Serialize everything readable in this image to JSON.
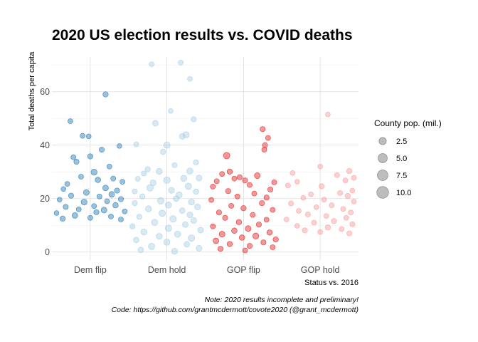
{
  "chart_data": {
    "type": "scatter",
    "title": "2020 US election results vs. COVID deaths",
    "xlabel": "Status vs. 2016",
    "ylabel": "Total deaths per capita",
    "categories": [
      "Dem flip",
      "Dem hold",
      "GOP flip",
      "GOP hold"
    ],
    "category_colors": [
      "#1f78b4",
      "#a6cee3",
      "#e31a1c",
      "#fb9a99"
    ],
    "ylim": [
      -3,
      73
    ],
    "y_ticks": [
      0,
      20,
      40,
      60
    ],
    "y_tick_labels": [
      "0",
      "20",
      "40",
      "60"
    ],
    "grid": true,
    "legend": {
      "title": "County pop. (mil.)",
      "placement": "right",
      "sizes": [
        2.5,
        5.0,
        7.5,
        10.0
      ],
      "labels": [
        "2.5",
        "5.0",
        "7.5",
        "10.0"
      ]
    },
    "series": [
      {
        "category": "Dem flip",
        "points": [
          [
            -0.26,
            49.0,
            0.6
          ],
          [
            0.2,
            59.0,
            0.8
          ],
          [
            -0.1,
            43.5,
            0.6
          ],
          [
            -0.02,
            43.3,
            0.5
          ],
          [
            0.15,
            38.3,
            0.7
          ],
          [
            0.38,
            39.7,
            0.5
          ],
          [
            -0.22,
            35.5,
            0.6
          ],
          [
            0.0,
            35.8,
            0.8
          ],
          [
            -0.18,
            33.8,
            0.7
          ],
          [
            0.05,
            29.9,
            1.3
          ],
          [
            0.25,
            32.0,
            0.6
          ],
          [
            0.1,
            27.0,
            0.9
          ],
          [
            -0.3,
            25.5,
            0.6
          ],
          [
            -0.12,
            28.2,
            0.6
          ],
          [
            0.3,
            27.5,
            0.6
          ],
          [
            0.42,
            26.3,
            0.6
          ],
          [
            0.2,
            24.0,
            1.0
          ],
          [
            -0.05,
            22.3,
            1.1
          ],
          [
            0.35,
            23.0,
            0.7
          ],
          [
            -0.35,
            23.6,
            0.5
          ],
          [
            0.28,
            21.6,
            1.0
          ],
          [
            -0.25,
            21.1,
            0.7
          ],
          [
            0.12,
            20.8,
            0.6
          ],
          [
            0.4,
            19.8,
            0.7
          ],
          [
            -0.4,
            19.6,
            0.5
          ],
          [
            0.22,
            19.0,
            0.6
          ],
          [
            -0.08,
            18.7,
            1.2
          ],
          [
            0.05,
            17.2,
            0.6
          ],
          [
            -0.32,
            16.9,
            0.7
          ],
          [
            0.33,
            17.5,
            0.9
          ],
          [
            -0.15,
            16.0,
            0.6
          ],
          [
            0.18,
            15.7,
            1.1
          ],
          [
            0.45,
            15.2,
            0.6
          ],
          [
            -0.44,
            14.6,
            0.5
          ],
          [
            0.08,
            14.9,
            0.7
          ],
          [
            -0.2,
            13.7,
            1.0
          ],
          [
            0.27,
            13.3,
            0.6
          ],
          [
            0.0,
            12.8,
            0.6
          ],
          [
            -0.36,
            12.5,
            0.8
          ],
          [
            0.4,
            12.2,
            0.6
          ]
        ]
      },
      {
        "category": "Dem hold",
        "points": [
          [
            -0.2,
            70.3,
            0.5
          ],
          [
            0.18,
            70.9,
            0.6
          ],
          [
            0.3,
            64.8,
            0.5
          ],
          [
            0.35,
            49.7,
            0.7
          ],
          [
            0.05,
            52.8,
            0.5
          ],
          [
            -0.15,
            48.2,
            1.1
          ],
          [
            0.25,
            43.9,
            1.4
          ],
          [
            0.2,
            43.3,
            1.0
          ],
          [
            -0.4,
            40.3,
            0.6
          ],
          [
            0.0,
            40.0,
            1.5
          ],
          [
            -0.05,
            37.5,
            0.8
          ],
          [
            0.38,
            33.6,
            0.7
          ],
          [
            -0.25,
            31.0,
            0.8
          ],
          [
            0.1,
            32.5,
            0.6
          ],
          [
            -0.1,
            30.2,
            1.3
          ],
          [
            0.3,
            30.3,
            1.5
          ],
          [
            -0.3,
            29.4,
            0.7
          ],
          [
            0.22,
            27.6,
            1.3
          ],
          [
            0.42,
            27.7,
            1.1
          ],
          [
            -0.38,
            27.4,
            0.6
          ],
          [
            0.0,
            26.9,
            1.8
          ],
          [
            -0.18,
            25.9,
            1.2
          ],
          [
            0.28,
            24.6,
            1.6
          ],
          [
            -0.22,
            24.0,
            1.7
          ],
          [
            0.06,
            23.1,
            1.2
          ],
          [
            0.38,
            22.6,
            0.9
          ],
          [
            -0.42,
            22.7,
            0.6
          ],
          [
            0.16,
            21.4,
            1.4
          ],
          [
            -0.32,
            20.8,
            0.8
          ],
          [
            0.12,
            20.0,
            1.0
          ],
          [
            -0.08,
            19.2,
            1.7
          ],
          [
            0.32,
            18.7,
            1.2
          ],
          [
            -0.42,
            18.3,
            0.7
          ],
          [
            0.02,
            17.6,
            1.4
          ],
          [
            0.4,
            16.9,
            1.2
          ],
          [
            -0.24,
            16.2,
            1.3
          ],
          [
            0.2,
            15.5,
            0.9
          ],
          [
            -0.06,
            14.5,
            1.6
          ],
          [
            0.3,
            13.9,
            1.1
          ],
          [
            -0.36,
            13.2,
            0.7
          ],
          [
            0.08,
            12.4,
            1.8
          ],
          [
            0.35,
            11.8,
            1.2
          ],
          [
            -0.16,
            11.1,
            1.4
          ],
          [
            0.24,
            10.3,
            1.0
          ],
          [
            -0.45,
            9.6,
            0.8
          ],
          [
            0.02,
            8.9,
            1.6
          ],
          [
            0.44,
            8.2,
            1.1
          ],
          [
            -0.3,
            7.5,
            1.3
          ],
          [
            0.14,
            6.7,
            1.5
          ],
          [
            -0.1,
            5.9,
            1.2
          ],
          [
            0.32,
            5.2,
            1.7
          ],
          [
            -0.4,
            4.5,
            0.9
          ],
          [
            0.0,
            3.7,
            1.4
          ],
          [
            0.26,
            2.9,
            1.0
          ],
          [
            -0.2,
            2.1,
            1.6
          ],
          [
            0.42,
            1.4,
            1.1
          ],
          [
            -0.34,
            0.8,
            0.9
          ],
          [
            0.1,
            0.3,
            1.3
          ]
        ]
      },
      {
        "category": "GOP flip",
        "points": [
          [
            0.25,
            46.0,
            0.7
          ],
          [
            0.32,
            42.7,
            0.6
          ],
          [
            0.28,
            40.0,
            0.6
          ],
          [
            0.27,
            38.3,
            0.6
          ],
          [
            -0.22,
            36.1,
            1.6
          ],
          [
            -0.18,
            30.1,
            0.8
          ],
          [
            -0.28,
            29.2,
            0.6
          ],
          [
            0.18,
            28.6,
            1.1
          ],
          [
            -0.05,
            28.0,
            0.7
          ],
          [
            -0.12,
            27.5,
            0.6
          ],
          [
            0.02,
            26.8,
            0.7
          ],
          [
            -0.35,
            26.5,
            0.6
          ],
          [
            0.4,
            26.1,
            0.6
          ],
          [
            0.08,
            25.1,
            0.6
          ],
          [
            -0.4,
            24.5,
            0.6
          ],
          [
            0.35,
            23.4,
            0.7
          ],
          [
            -0.2,
            22.8,
            0.7
          ],
          [
            0.14,
            21.9,
            0.6
          ],
          [
            -0.08,
            20.8,
            0.6
          ],
          [
            0.3,
            20.4,
            0.7
          ],
          [
            -0.42,
            19.5,
            0.6
          ],
          [
            0.24,
            18.3,
            0.7
          ],
          [
            -0.16,
            17.3,
            0.6
          ],
          [
            0.0,
            16.4,
            0.8
          ],
          [
            0.38,
            15.8,
            0.6
          ],
          [
            -0.32,
            14.8,
            0.7
          ],
          [
            0.12,
            13.9,
            0.6
          ],
          [
            -0.24,
            12.8,
            0.7
          ],
          [
            0.3,
            12.1,
            0.6
          ],
          [
            -0.06,
            11.2,
            0.8
          ],
          [
            0.2,
            10.3,
            0.7
          ],
          [
            -0.4,
            9.6,
            0.6
          ],
          [
            0.06,
            8.8,
            1.0
          ],
          [
            -0.12,
            8.0,
            0.9
          ],
          [
            0.34,
            7.3,
            0.8
          ],
          [
            -0.28,
            6.7,
            1.1
          ],
          [
            0.16,
            6.0,
            1.3
          ],
          [
            -0.02,
            5.4,
            0.9
          ],
          [
            0.42,
            4.7,
            0.8
          ],
          [
            -0.36,
            4.2,
            1.0
          ],
          [
            0.26,
            3.6,
            0.7
          ],
          [
            -0.18,
            3.0,
            0.8
          ],
          [
            0.08,
            2.3,
            0.7
          ],
          [
            0.38,
            1.8,
            0.6
          ],
          [
            -0.3,
            1.2,
            0.7
          ],
          [
            0.02,
            0.6,
            0.6
          ]
        ]
      },
      {
        "category": "GOP hold",
        "points": [
          [
            0.1,
            51.5,
            0.5
          ],
          [
            0.0,
            32.0,
            0.5
          ],
          [
            0.38,
            30.3,
            0.8
          ],
          [
            -0.36,
            29.6,
            0.5
          ],
          [
            0.22,
            28.8,
            0.6
          ],
          [
            0.44,
            27.8,
            0.6
          ],
          [
            0.33,
            26.8,
            0.6
          ],
          [
            -0.3,
            26.3,
            0.5
          ],
          [
            -0.42,
            24.9,
            0.6
          ],
          [
            0.02,
            24.6,
            0.7
          ],
          [
            0.42,
            23.0,
            0.5
          ],
          [
            0.26,
            22.1,
            0.6
          ],
          [
            -0.12,
            21.6,
            0.5
          ],
          [
            0.36,
            21.0,
            0.8
          ],
          [
            -0.22,
            20.3,
            0.5
          ],
          [
            0.05,
            19.6,
            0.6
          ],
          [
            0.44,
            18.9,
            0.5
          ],
          [
            -0.38,
            18.2,
            0.6
          ],
          [
            0.15,
            17.5,
            0.6
          ],
          [
            -0.05,
            16.8,
            0.5
          ],
          [
            0.3,
            16.1,
            0.6
          ],
          [
            -0.28,
            15.4,
            0.5
          ],
          [
            0.4,
            14.8,
            0.6
          ],
          [
            -0.16,
            14.1,
            0.6
          ],
          [
            0.08,
            13.5,
            0.5
          ],
          [
            0.34,
            12.8,
            0.6
          ],
          [
            -0.44,
            12.2,
            0.5
          ],
          [
            0.18,
            11.6,
            0.7
          ],
          [
            -0.08,
            11.0,
            0.6
          ],
          [
            0.42,
            10.4,
            0.6
          ],
          [
            -0.3,
            9.8,
            0.5
          ],
          [
            0.1,
            9.2,
            0.8
          ],
          [
            0.28,
            8.6,
            0.6
          ],
          [
            -0.2,
            8.1,
            0.7
          ],
          [
            0.0,
            7.5,
            0.6
          ],
          [
            0.38,
            7.0,
            0.6
          ]
        ]
      }
    ]
  },
  "caption": {
    "line1": "Note: 2020 results incomplete and preliminary!",
    "line2": "Code: https://github.com/grantmcdermott/covote2020 (@grant_mcdermott)"
  }
}
